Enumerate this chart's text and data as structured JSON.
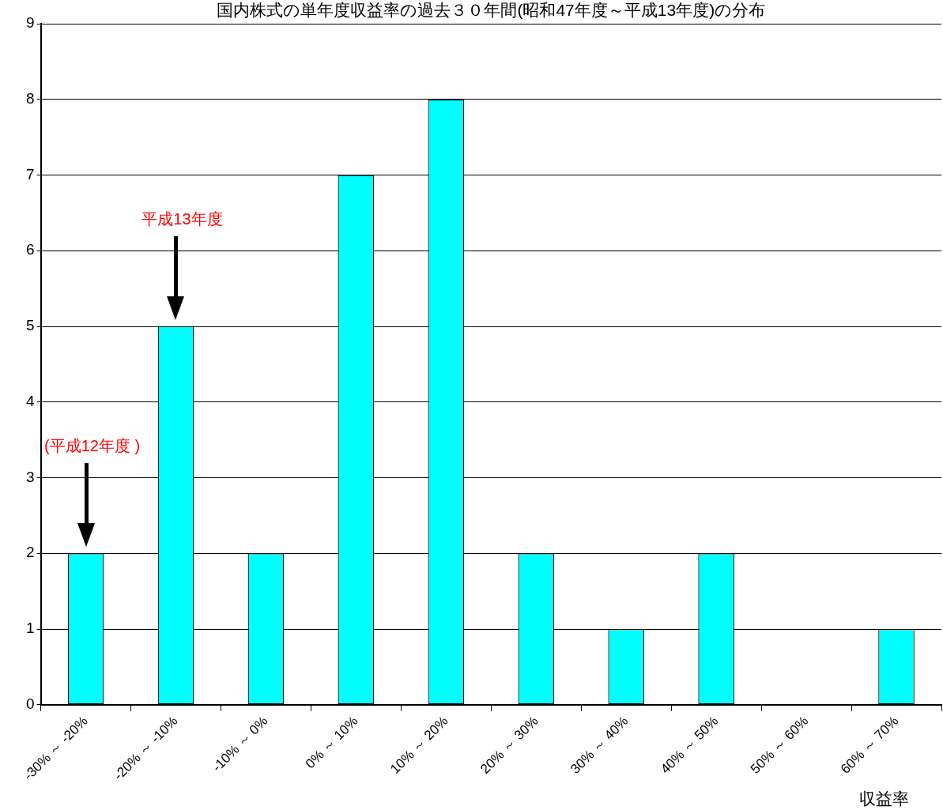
{
  "chart_data": {
    "type": "bar",
    "title": "国内株式の単年度収益率の過去３０年間(昭和47年度～平成13年度)の分布",
    "xlabel": "収益率",
    "categories": [
      "-30% ～ -20%",
      "-20% ～ -10%",
      "-10% ～ 0%",
      "0% ～ 10%",
      "10% ～ 20%",
      "20% ～ 30%",
      "30% ～ 40%",
      "40% ～ 50%",
      "50% ～ 60%",
      "60% ～ 70%"
    ],
    "values": [
      2,
      5,
      2,
      7,
      8,
      2,
      1,
      2,
      0,
      1
    ],
    "color": "#00ffff",
    "ylim": [
      0,
      9
    ],
    "yticks": [
      0,
      1,
      2,
      3,
      4,
      5,
      6,
      7,
      8,
      9
    ],
    "grid": "y",
    "legend": false,
    "annotations": [
      "(平成12年度 )",
      "平成13年度"
    ]
  }
}
